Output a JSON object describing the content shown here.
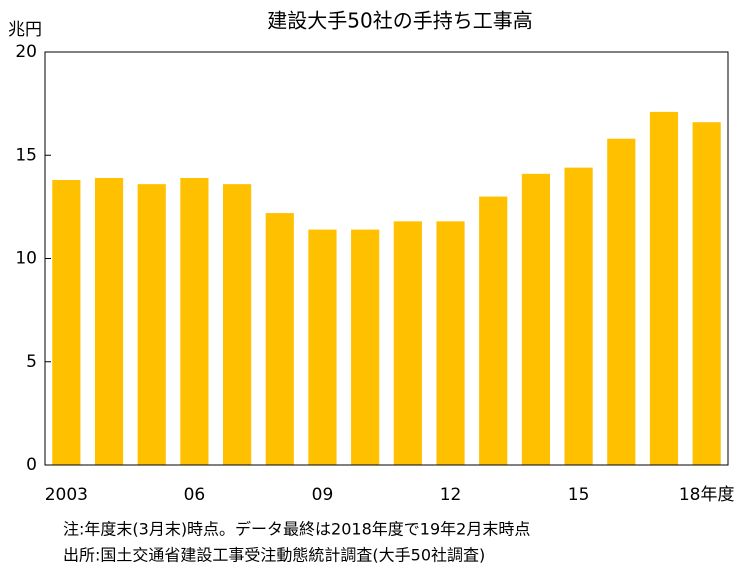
{
  "chart_data": {
    "type": "bar",
    "title": "建設大手50社の手持ち工事高",
    "y_label": "兆円",
    "categories": [
      "2003",
      null,
      null,
      "06",
      null,
      null,
      "09",
      null,
      null,
      "12",
      null,
      null,
      "15",
      null,
      null,
      "18年度"
    ],
    "values": [
      13.8,
      13.9,
      13.6,
      13.9,
      13.6,
      12.2,
      11.4,
      11.4,
      11.8,
      11.8,
      13.0,
      14.1,
      14.4,
      15.8,
      17.1,
      16.6
    ],
    "color": "#ffc000",
    "ylim": [
      0,
      20
    ],
    "yticks": [
      0,
      5,
      10,
      15,
      20
    ],
    "notes": [
      "注:年度末(3月末)時点。データ最終は2018年度で19年2月末時点",
      "出所:国土交通省建設工事受注動態統計調査(大手50社調査)"
    ]
  }
}
